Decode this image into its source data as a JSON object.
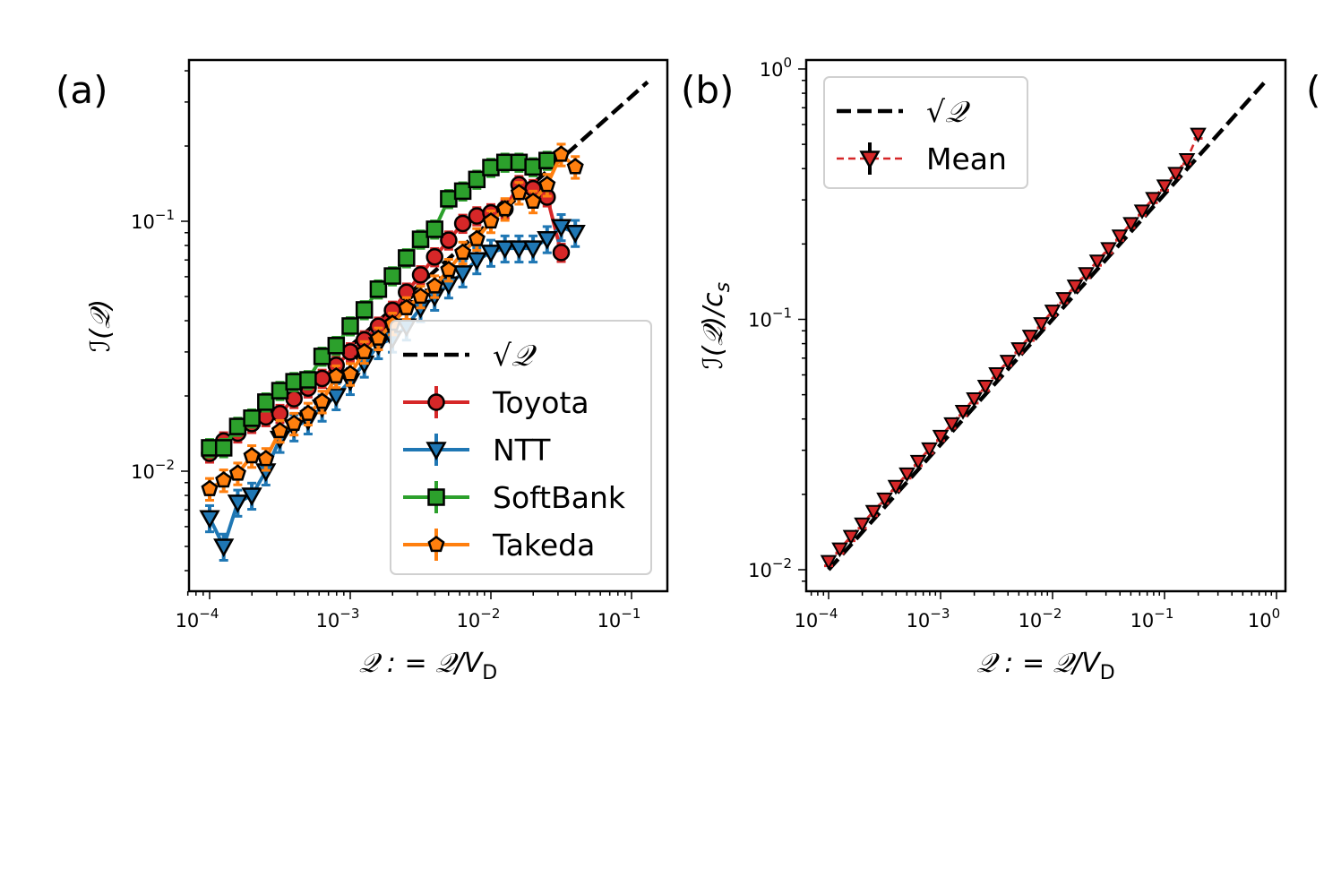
{
  "chart_data": [
    {
      "panel_label": "(a)",
      "type": "line",
      "xscale": "log",
      "yscale": "log",
      "xlim": [
        7e-05,
        0.178
      ],
      "ylim": [
        0.0033,
        0.44
      ],
      "xlabel": "𝒬 : = 𝒬/V",
      "xlabel_sub": "D",
      "ylabel": "ℐ(𝒬)",
      "xticks": [
        {
          "v": 0.0001,
          "base": "10",
          "exp": "−4"
        },
        {
          "v": 0.001,
          "base": "10",
          "exp": "−3"
        },
        {
          "v": 0.01,
          "base": "10",
          "exp": "−2"
        },
        {
          "v": 0.1,
          "base": "10",
          "exp": "−1"
        }
      ],
      "yticks": [
        {
          "v": 0.01,
          "base": "10",
          "exp": "−2"
        },
        {
          "v": 0.1,
          "base": "10",
          "exp": "−1"
        }
      ],
      "x_step_log10": 0.1,
      "x_start": 0.0001,
      "reference": {
        "name": "√𝒬",
        "legend_tex": "√𝒬",
        "xrange": [
          0.001,
          0.13
        ],
        "color": "#000000"
      },
      "legend_position": "lower-right",
      "series": [
        {
          "name": "Toyota",
          "marker": "circle",
          "color": "#d62728",
          "values": [
            0.0118,
            0.0132,
            0.0142,
            0.0155,
            0.0165,
            0.017,
            0.0195,
            0.0215,
            0.0235,
            0.0265,
            0.03,
            0.0335,
            0.038,
            0.044,
            0.052,
            0.061,
            0.072,
            0.084,
            0.098,
            0.105,
            0.108,
            0.112,
            0.14,
            0.135,
            0.125,
            0.075
          ],
          "yerr_frac": 0.08
        },
        {
          "name": "NTT",
          "marker": "triangle-down",
          "color": "#1f77b4",
          "values": [
            0.0065,
            0.005,
            0.0075,
            0.008,
            0.01,
            0.0135,
            0.015,
            0.016,
            0.018,
            0.02,
            0.023,
            0.027,
            0.032,
            0.034,
            0.038,
            0.045,
            0.05,
            0.056,
            0.062,
            0.07,
            0.075,
            0.078,
            0.078,
            0.078,
            0.085,
            0.095,
            0.09
          ],
          "yerr_frac": 0.12
        },
        {
          "name": "SoftBank",
          "marker": "square",
          "color": "#2ca02c",
          "values": [
            0.0124,
            0.0124,
            0.0151,
            0.0163,
            0.0189,
            0.021,
            0.0228,
            0.0232,
            0.0288,
            0.0318,
            0.0381,
            0.0442,
            0.0535,
            0.0604,
            0.0713,
            0.0847,
            0.0929,
            0.123,
            0.132,
            0.147,
            0.164,
            0.172,
            0.172,
            0.165,
            0.175
          ],
          "yerr_frac": 0.08
        },
        {
          "name": "Takeda",
          "marker": "pentagon",
          "color": "#ff7f0e",
          "values": [
            0.0085,
            0.0092,
            0.0098,
            0.0115,
            0.0112,
            0.0145,
            0.0155,
            0.017,
            0.019,
            0.024,
            0.0245,
            0.03,
            0.034,
            0.039,
            0.045,
            0.05,
            0.055,
            0.064,
            0.075,
            0.085,
            0.1,
            0.112,
            0.13,
            0.12,
            0.14,
            0.185,
            0.165
          ],
          "yerr_frac": 0.1
        }
      ]
    },
    {
      "panel_label": "(b)",
      "type": "line",
      "xscale": "log",
      "yscale": "log",
      "xlim": [
        6.3e-05,
        1.2
      ],
      "ylim": [
        0.0082,
        1.09
      ],
      "xlabel": "𝒬 : = 𝒬/V",
      "xlabel_sub": "D",
      "ylabel": "ℐ(𝒬)/c",
      "ylabel_sub": "s",
      "xticks": [
        {
          "v": 0.0001,
          "base": "10",
          "exp": "−4"
        },
        {
          "v": 0.001,
          "base": "10",
          "exp": "−3"
        },
        {
          "v": 0.01,
          "base": "10",
          "exp": "−2"
        },
        {
          "v": 0.1,
          "base": "10",
          "exp": "−1"
        },
        {
          "v": 1,
          "base": "10",
          "exp": "0"
        }
      ],
      "yticks": [
        {
          "v": 0.01,
          "base": "10",
          "exp": "−2"
        },
        {
          "v": 0.1,
          "base": "10",
          "exp": "−1"
        },
        {
          "v": 1,
          "base": "10",
          "exp": "0"
        }
      ],
      "x_step_log10": 0.1,
      "x_start": 0.0001,
      "reference": {
        "name": "√𝒬",
        "legend_tex": "√𝒬",
        "xrange": [
          0.0001,
          0.8
        ],
        "color": "#000000"
      },
      "legend_position": "upper-left",
      "series": [
        {
          "name": "Mean",
          "marker": "triangle-down",
          "color": "#d62728",
          "line": "dashed",
          "values": [
            0.0108,
            0.01212,
            0.0136,
            0.01526,
            0.01712,
            0.0192,
            0.02155,
            0.02418,
            0.02713,
            0.03044,
            0.03415,
            0.03832,
            0.043,
            0.04824,
            0.05413,
            0.06073,
            0.06814,
            0.07646,
            0.08579,
            0.09626,
            0.108,
            0.1212,
            0.136,
            0.1526,
            0.1712,
            0.192,
            0.2155,
            0.2418,
            0.2713,
            0.3044,
            0.3415,
            0.3832,
            0.435,
            0.55
          ],
          "yerr_frac": 0.04
        }
      ]
    }
  ],
  "next_panel_label_fragment": "("
}
